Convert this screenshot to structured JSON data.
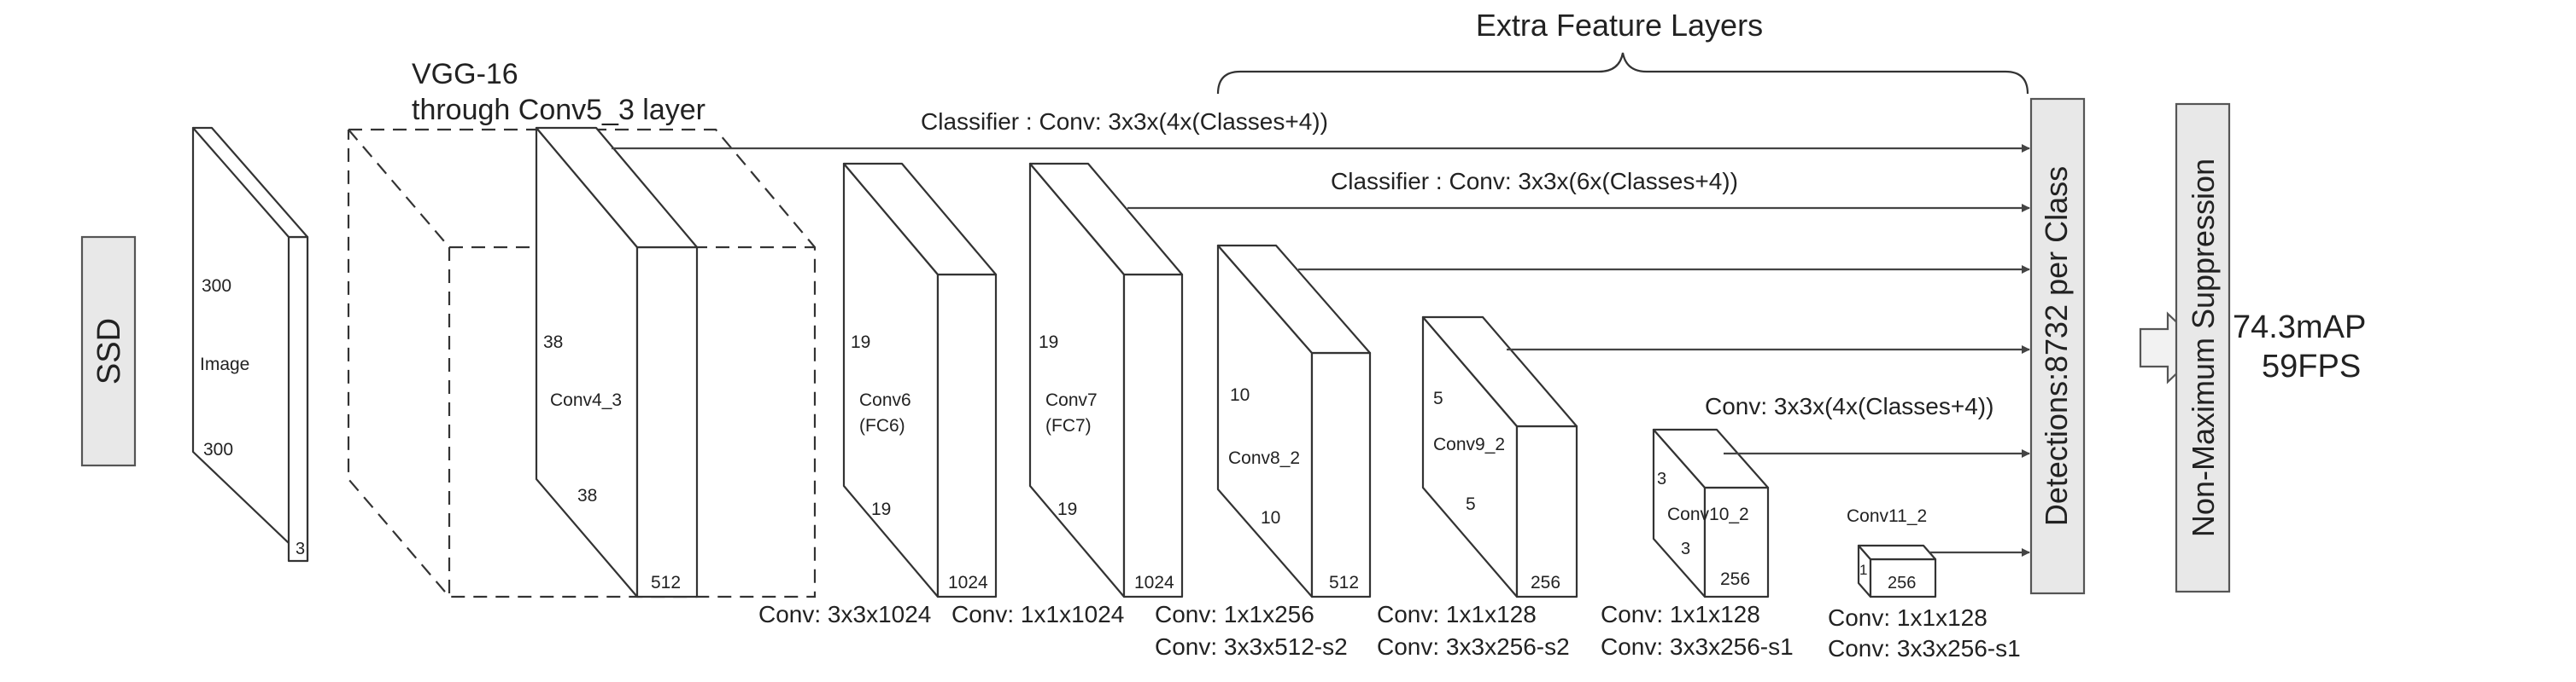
{
  "colors": {
    "panel_fill": "#e8e8e8",
    "stroke": "#333333",
    "text": "#222222",
    "background": "#ffffff"
  },
  "ssd_label": "SSD",
  "title_extra": "Extra Feature Layers",
  "vgg_label_1": "VGG-16",
  "vgg_label_2": "through Conv5_3 layer",
  "classifier_1": "Classifier : Conv: 3x3x(4x(Classes+4))",
  "classifier_2": "Classifier : Conv: 3x3x(6x(Classes+4))",
  "classifier_3": "Conv: 3x3x(4x(Classes+4))",
  "detections_label": "Detections:8732  per Class",
  "nms_label": "Non-Maximum Suppression",
  "result_map": "74.3mAP",
  "result_fps": "59FPS",
  "image": {
    "name": "Image",
    "h": "300",
    "w": "300",
    "c": "3"
  },
  "conv4_3": {
    "name": "Conv4_3",
    "h": "38",
    "w": "38",
    "c": "512"
  },
  "conv6": {
    "name": "Conv6",
    "sub": "(FC6)",
    "h": "19",
    "w": "19",
    "c": "1024",
    "conv_label": "Conv: 3x3x1024"
  },
  "conv7": {
    "name": "Conv7",
    "sub": "(FC7)",
    "h": "19",
    "w": "19",
    "c": "1024",
    "conv_label": "Conv: 1x1x1024"
  },
  "conv8_2": {
    "name": "Conv8_2",
    "h": "10",
    "w": "10",
    "c": "512",
    "conv_label_1": "Conv:  1x1x256",
    "conv_label_2": "Conv:  3x3x512-s2"
  },
  "conv9_2": {
    "name": "Conv9_2",
    "h": "5",
    "w": "5",
    "c": "256",
    "conv_label_1": "Conv:  1x1x128",
    "conv_label_2": "Conv: 3x3x256-s2"
  },
  "conv10_2": {
    "name": "Conv10_2",
    "h": "3",
    "w": "3",
    "c": "256",
    "conv_label_1": "Conv:  1x1x128",
    "conv_label_2": "Conv: 3x3x256-s1"
  },
  "conv11_2": {
    "name": "Conv11_2",
    "h": "1",
    "c": "256",
    "conv_label_1": "Conv:  1x1x128",
    "conv_label_2": "Conv: 3x3x256-s1"
  }
}
